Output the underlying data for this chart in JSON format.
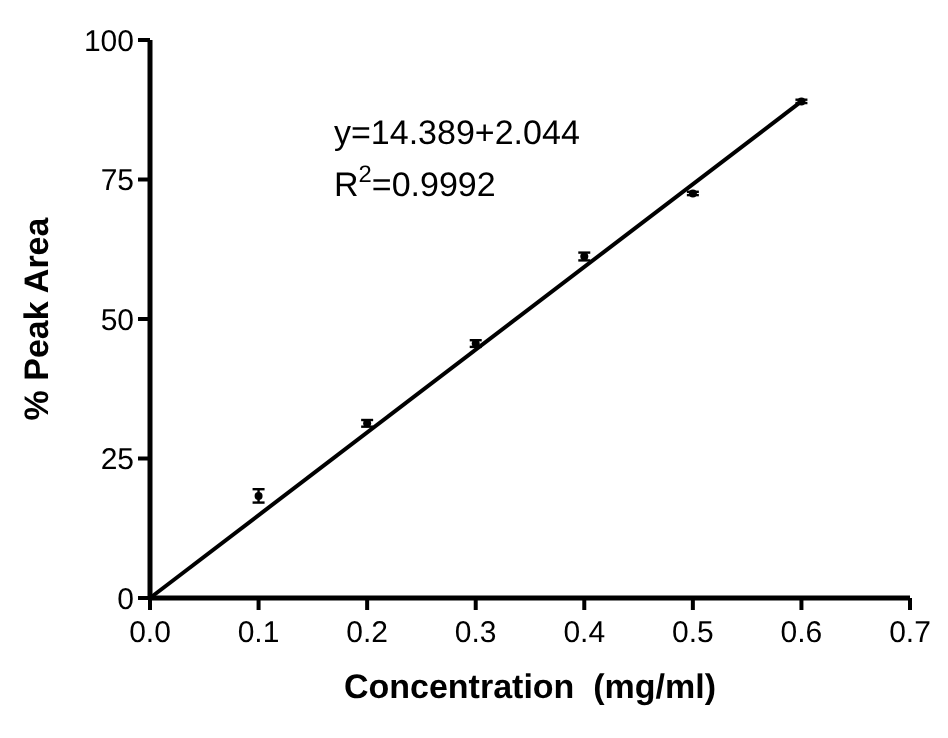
{
  "chart_data": {
    "type": "scatter",
    "xlabel": "Concentration  (mg/ml)",
    "ylabel": "% Peak Area",
    "xlim": [
      0,
      0.7
    ],
    "xticks": [
      {
        "value": 0,
        "label": "0.0"
      },
      0.1,
      0.2,
      0.3,
      0.4,
      0.5,
      0.6,
      0.7
    ],
    "ylim": [
      0,
      100
    ],
    "yticks": [
      0,
      25,
      50,
      75,
      100
    ],
    "grid": false,
    "annotations": [
      "y=14.389+2.044",
      "R$^{2}$=0.9992"
    ],
    "series": [
      {
        "marker": "circle",
        "color": "#000000",
        "x": [
          0.1,
          0.2,
          0.3,
          0.4,
          0.5,
          0.6
        ],
        "values": [
          18.3,
          31.3,
          45.6,
          61.2,
          72.5,
          89
        ],
        "errors": [
          1.2,
          0.6,
          0.6,
          0.7,
          0.3,
          0.3
        ]
      },
      {
        "type": "line",
        "color": "#000000",
        "x": [
          0,
          0.6
        ],
        "values": [
          0,
          89
        ]
      }
    ]
  }
}
